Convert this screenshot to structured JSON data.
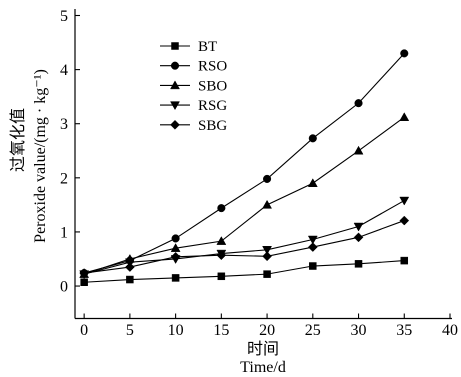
{
  "chart_data": {
    "type": "line",
    "xlabel_cn": "时间",
    "xlabel": "Time/d",
    "ylabel_cn": "过氧化值",
    "ylabel": "Peroxide value/(mg · kg⁻¹)",
    "xlim": [
      -1,
      40
    ],
    "ylim": [
      -0.6,
      5
    ],
    "xticks": [
      0,
      5,
      10,
      15,
      20,
      25,
      30,
      35,
      40
    ],
    "yticks": [
      0,
      1,
      2,
      3,
      4,
      5
    ],
    "grid": false,
    "legend_position": "top-left",
    "x": [
      0,
      5,
      10,
      15,
      20,
      25,
      30,
      35
    ],
    "series": [
      {
        "name": "BT",
        "marker": "square",
        "values": [
          0.07,
          0.12,
          0.15,
          0.18,
          0.22,
          0.37,
          0.41,
          0.47
        ]
      },
      {
        "name": "RSO",
        "marker": "circle",
        "values": [
          0.24,
          0.47,
          0.88,
          1.44,
          1.98,
          2.73,
          3.38,
          4.3
        ]
      },
      {
        "name": "SBO",
        "marker": "triangle-up",
        "values": [
          0.22,
          0.5,
          0.7,
          0.83,
          1.5,
          1.9,
          2.5,
          3.12
        ]
      },
      {
        "name": "RSG",
        "marker": "triangle-down",
        "values": [
          0.22,
          0.44,
          0.5,
          0.6,
          0.67,
          0.86,
          1.1,
          1.58
        ]
      },
      {
        "name": "SBG",
        "marker": "diamond",
        "values": [
          0.24,
          0.35,
          0.54,
          0.57,
          0.55,
          0.72,
          0.9,
          1.21
        ]
      }
    ],
    "colors": {
      "line": "#000000",
      "marker": "#000000"
    }
  }
}
